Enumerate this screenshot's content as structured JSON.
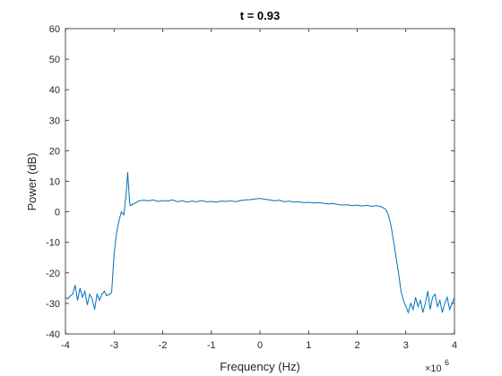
{
  "chart_data": {
    "type": "line",
    "title": "t = 0.93",
    "xlabel": "Frequency (Hz)",
    "ylabel": "Power (dB)",
    "x_exponent_label": "×10",
    "x_exponent_power": "6",
    "xlim": [
      -4,
      4
    ],
    "ylim": [
      -40,
      60
    ],
    "x_ticks": [
      -4,
      -3,
      -2,
      -1,
      0,
      1,
      2,
      3,
      4
    ],
    "y_ticks": [
      -40,
      -30,
      -20,
      -10,
      0,
      10,
      20,
      30,
      40,
      50,
      60
    ],
    "x_tick_labels": [
      "-4",
      "-3",
      "-2",
      "-1",
      "0",
      "1",
      "2",
      "3",
      "4"
    ],
    "y_tick_labels": [
      "-40",
      "-30",
      "-20",
      "-10",
      "0",
      "10",
      "20",
      "30",
      "40",
      "50",
      "60"
    ],
    "grid": false,
    "line_color": "#0072BD",
    "series": [
      {
        "x": [
          -4.0,
          -3.95,
          -3.9,
          -3.85,
          -3.8,
          -3.75,
          -3.7,
          -3.65,
          -3.6,
          -3.55,
          -3.5,
          -3.45,
          -3.4,
          -3.35,
          -3.3,
          -3.25,
          -3.2,
          -3.15,
          -3.1,
          -3.05,
          -3.0,
          -2.95,
          -2.9,
          -2.85,
          -2.8,
          -2.75,
          -2.72,
          -2.7,
          -2.68,
          -2.66,
          -2.62,
          -2.55,
          -2.5,
          -2.4,
          -2.3,
          -2.2,
          -2.1,
          -2.0,
          -1.9,
          -1.8,
          -1.7,
          -1.6,
          -1.5,
          -1.4,
          -1.3,
          -1.2,
          -1.1,
          -1.0,
          -0.9,
          -0.8,
          -0.7,
          -0.6,
          -0.5,
          -0.4,
          -0.3,
          -0.2,
          -0.1,
          0.0,
          0.1,
          0.2,
          0.3,
          0.4,
          0.5,
          0.6,
          0.7,
          0.8,
          0.9,
          1.0,
          1.1,
          1.2,
          1.3,
          1.4,
          1.5,
          1.6,
          1.7,
          1.8,
          1.9,
          2.0,
          2.1,
          2.2,
          2.3,
          2.4,
          2.5,
          2.55,
          2.6,
          2.65,
          2.7,
          2.75,
          2.8,
          2.85,
          2.9,
          2.95,
          3.0,
          3.05,
          3.1,
          3.15,
          3.2,
          3.25,
          3.3,
          3.35,
          3.4,
          3.45,
          3.5,
          3.55,
          3.6,
          3.65,
          3.7,
          3.75,
          3.8,
          3.85,
          3.9,
          3.95,
          4.0
        ],
        "y": [
          -28,
          -28.5,
          -27.5,
          -27,
          -24,
          -29,
          -25,
          -28,
          -26,
          -30.5,
          -27,
          -28.5,
          -32,
          -27,
          -29,
          -27,
          -26,
          -27.5,
          -27,
          -26.5,
          -14,
          -7,
          -3,
          0,
          -1,
          6,
          13,
          8,
          3,
          2,
          2.5,
          3,
          3.5,
          3.8,
          3.6,
          3.9,
          3.4,
          3.7,
          3.5,
          3.9,
          3.3,
          3.6,
          3.2,
          3.5,
          3.3,
          3.7,
          3.3,
          3.4,
          3.2,
          3.5,
          3.4,
          3.6,
          3.3,
          3.7,
          3.9,
          4.0,
          4.2,
          4.4,
          4.1,
          3.9,
          3.6,
          3.8,
          3.3,
          3.5,
          3.2,
          3.3,
          3.0,
          3.1,
          2.9,
          3.0,
          2.8,
          2.6,
          2.7,
          2.4,
          2.2,
          2.3,
          2.0,
          2.2,
          1.9,
          2.1,
          1.8,
          2.0,
          1.6,
          1.2,
          0.5,
          -1.5,
          -5,
          -10,
          -15,
          -20,
          -26,
          -29,
          -31,
          -33,
          -30,
          -32,
          -28,
          -31,
          -29,
          -33,
          -30,
          -26,
          -32,
          -28,
          -27,
          -31,
          -29,
          -33,
          -30,
          -28,
          -32,
          -30,
          -28
        ]
      }
    ]
  }
}
